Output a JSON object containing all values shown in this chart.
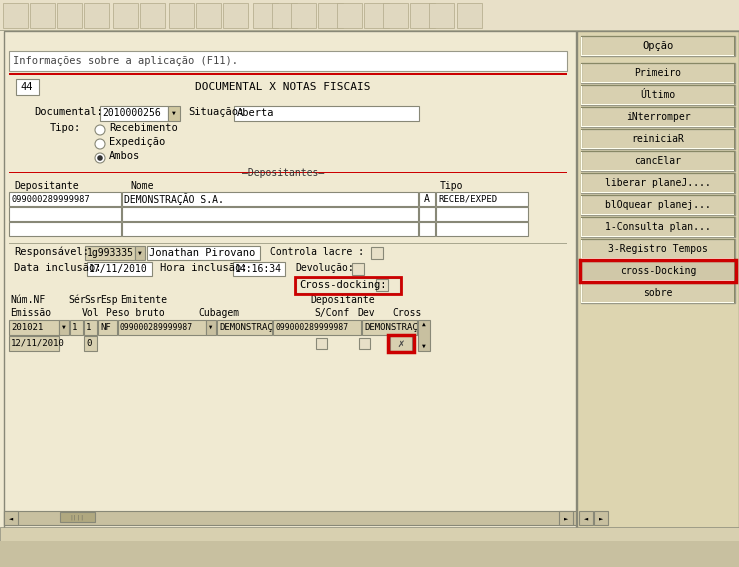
{
  "bg_color": "#f0ead2",
  "toolbar_bg": "#c8c0a0",
  "right_panel_bg": "#ddd5b0",
  "title": "DOCUMENTAL X NOTAS FISCAIS",
  "form_number": "44",
  "info_bar_text": "Informações sobre a aplicação (F11).",
  "documental_value": "2010000256",
  "situacao_value": "Aberta",
  "tipo_options": [
    "Recebimento",
    "Expedição",
    "Ambos"
  ],
  "tipo_selected": 2,
  "dep_row1": [
    "099000289999987",
    "DEMONSTRAÇÃO S.A.",
    "A",
    "RECEB/EXPED"
  ],
  "responsavel_code": "1g993335",
  "responsavel_name": "Jonathan Pirovano",
  "data_inclusao_value": "17/11/2010",
  "hora_inclusao_value": "14:16:34",
  "cross_docking_label": "Cross-docking:",
  "nf_row1_num": "201021",
  "nf_row1_ser": "1",
  "nf_row1_ssr": "1",
  "nf_row1_esp": "NF",
  "nf_row1_emit": "099000289999987",
  "nf_row1_emit_short": "DEMONSTRAÇ",
  "nf_row1_dep": "099000289999987",
  "nf_row1_dep_short": "DEMONSTRAÇ",
  "nf_row2_date": "12/11/2010",
  "nf_row2_vol": "0",
  "right_buttons": [
    "Opção",
    "Primeiro",
    "Último",
    "iNterromper",
    "reiniciaR",
    "cancElar",
    "liberar planeJ....",
    "blOquear planej...",
    "1-Consulta plan...",
    "3-Registro Tempos",
    "cross-Docking",
    "sobre"
  ],
  "highlighted_button_idx": 10
}
